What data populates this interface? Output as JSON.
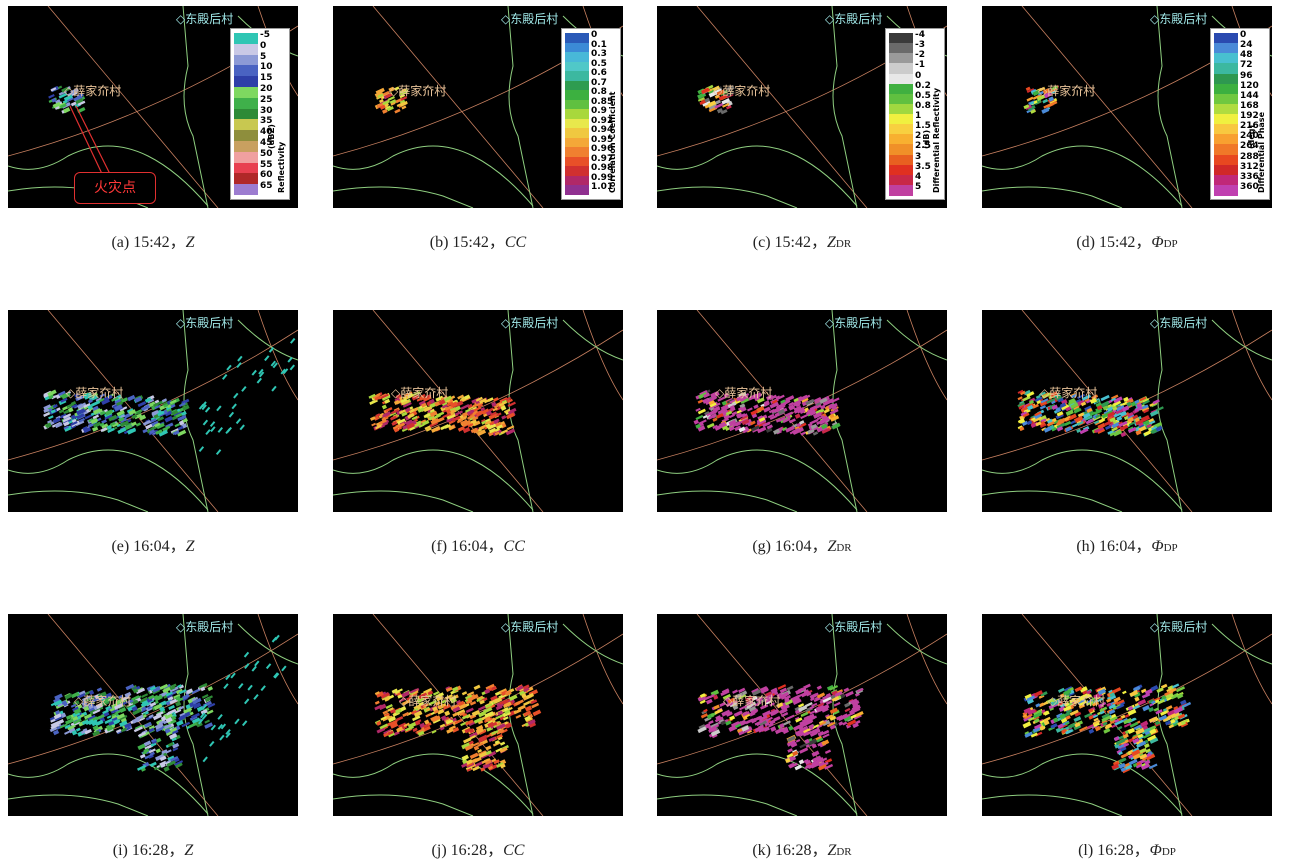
{
  "village_top": "东殿后村",
  "village_left": "薛家夼村",
  "fire_label": "火灾点",
  "colorbars": {
    "reflectivity": {
      "title": "Reflectivity",
      "unit": "(dBZ)",
      "ticks": [
        "-5",
        "0",
        "5",
        "10",
        "15",
        "20",
        "25",
        "30",
        "35",
        "40",
        "45",
        "50",
        "55",
        "60",
        "65"
      ],
      "colors": [
        "#2fc6b4",
        "#c9c9e6",
        "#8c9ad6",
        "#4a63c2",
        "#2e3fa8",
        "#7ed860",
        "#3fb04a",
        "#2e8a36",
        "#c8c850",
        "#8e8e3c",
        "#c8a060",
        "#f0a0a0",
        "#e84050",
        "#b02828",
        "#9c7cd0"
      ]
    },
    "cc": {
      "title": "Correlation Coefficient",
      "ticks": [
        "0",
        "0.1",
        "0.3",
        "0.5",
        "0.6",
        "0.7",
        "0.8",
        "0.85",
        "0.9",
        "0.92",
        "0.94",
        "0.95",
        "0.96",
        "0.97",
        "0.98",
        "0.99",
        "1.01"
      ],
      "colors": [
        "#2a5ab8",
        "#3b8ad6",
        "#48b8d8",
        "#50c8c8",
        "#3cb8a0",
        "#2e9c50",
        "#3cb040",
        "#60c040",
        "#a8d83c",
        "#e8e84c",
        "#f0c840",
        "#f4a838",
        "#f08030",
        "#e85028",
        "#d03030",
        "#b02868",
        "#903090"
      ]
    },
    "zdr": {
      "title": "Differential Reflectivity",
      "unit": "(dB)",
      "ticks": [
        "-4",
        "-3",
        "-2",
        "-1",
        "0",
        "0.2",
        "0.5",
        "0.8",
        "1",
        "1.5",
        "2",
        "2.5",
        "3",
        "3.5",
        "4",
        "5"
      ],
      "colors": [
        "#3a3a3a",
        "#6a6a6a",
        "#9a9a9a",
        "#cccccc",
        "#e8e8e8",
        "#40b040",
        "#60c040",
        "#a0d840",
        "#f0f040",
        "#f8d040",
        "#f8b030",
        "#f09028",
        "#e86020",
        "#e03020",
        "#c82848",
        "#c040a0"
      ]
    },
    "phidp": {
      "title": "Differential Phase",
      "unit": "(deg)",
      "ticks": [
        "0",
        "24",
        "48",
        "72",
        "96",
        "120",
        "144",
        "168",
        "192",
        "216",
        "240",
        "264",
        "288",
        "312",
        "336",
        "360"
      ],
      "colors": [
        "#2a4ab0",
        "#4a8ad8",
        "#48c0d0",
        "#3cb8a0",
        "#2e9850",
        "#3cb040",
        "#70c840",
        "#b0dc40",
        "#f0f040",
        "#f8c840",
        "#f8a030",
        "#f07828",
        "#e84820",
        "#d02828",
        "#c02878",
        "#c040b0"
      ]
    }
  },
  "captions": [
    {
      "id": "(a)",
      "time": "15:42",
      "var": "Z",
      "sub": ""
    },
    {
      "id": "(b)",
      "time": "15:42",
      "var": "CC",
      "sub": ""
    },
    {
      "id": "(c)",
      "time": "15:42",
      "var": "Z",
      "sub": "DR"
    },
    {
      "id": "(d)",
      "time": "15:42",
      "var": "Φ",
      "sub": "DP"
    },
    {
      "id": "(e)",
      "time": "16:04",
      "var": "Z",
      "sub": ""
    },
    {
      "id": "(f)",
      "time": "16:04",
      "var": "CC",
      "sub": ""
    },
    {
      "id": "(g)",
      "time": "16:04",
      "var": "Z",
      "sub": "DR"
    },
    {
      "id": "(h)",
      "time": "16:04",
      "var": "Φ",
      "sub": "DP"
    },
    {
      "id": "(i)",
      "time": "16:28",
      "var": "Z",
      "sub": ""
    },
    {
      "id": "(j)",
      "time": "16:28",
      "var": "CC",
      "sub": ""
    },
    {
      "id": "(k)",
      "time": "16:28",
      "var": "Z",
      "sub": "DR"
    },
    {
      "id": "(l)",
      "time": "16:28",
      "var": "Φ",
      "sub": "DP"
    }
  ],
  "colors": {
    "background": "#000000",
    "village_label": "#9fe6e6",
    "range_ring": "#c88060",
    "boundary_line": "#8fcf80",
    "fire_marker": "#e03030"
  }
}
